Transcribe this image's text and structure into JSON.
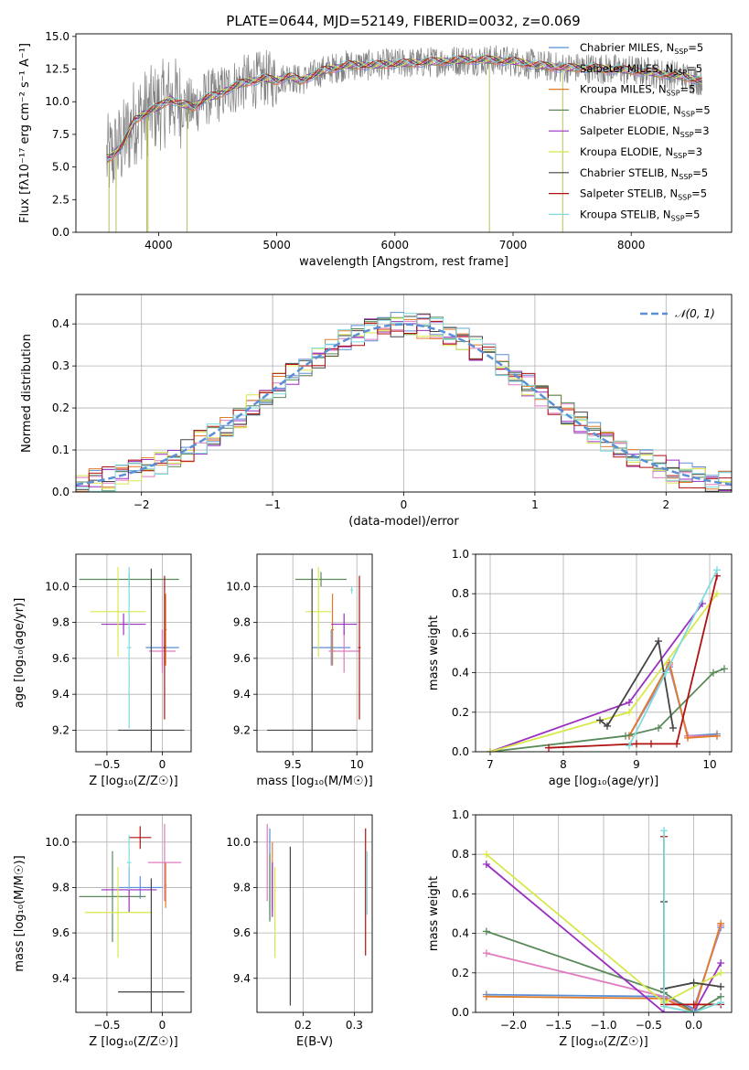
{
  "figure": {
    "title": "PLATE=0644, MJD=52149, FIBERID=0032, z=0.069"
  },
  "colors": {
    "chabrier_miles": "#5b8fd6",
    "salpeter_miles": "#e07bc0",
    "kroupa_miles": "#e07b2a",
    "chabrier_elodie": "#5a8a5a",
    "salpeter_elodie": "#9a2fc0",
    "kroupa_elodie": "#d8e84a",
    "chabrier_stelib": "#444444",
    "salpeter_stelib": "#b01010",
    "kroupa_stelib": "#7fdcdc",
    "data": "#808080",
    "normal": "#5b8fd6"
  },
  "chart_data": [
    {
      "panel": "spectrum",
      "type": "line",
      "title": "PLATE=0644, MJD=52149, FIBERID=0032, z=0.069",
      "xlabel": "wavelength [Angstrom, rest frame]",
      "ylabel": "Flux [fλ10⁻¹⁷ erg cm⁻² s⁻¹ A⁻¹]",
      "xlim": [
        3300,
        8850
      ],
      "ylim": [
        0,
        15.2
      ],
      "xticks": [
        4000,
        5000,
        6000,
        7000,
        8000
      ],
      "yticks": [
        0.0,
        2.5,
        5.0,
        7.5,
        10.0,
        12.5,
        15.0
      ],
      "legend_position": "right",
      "continuum": {
        "x": [
          3560,
          3600,
          3700,
          3800,
          3900,
          4000,
          4100,
          4200,
          4300,
          4400,
          4500,
          4600,
          4700,
          4800,
          4900,
          5000,
          5100,
          5200,
          5300,
          5400,
          5500,
          5600,
          5800,
          6000,
          6200,
          6400,
          6600,
          6800,
          7000,
          7200,
          7400,
          7600,
          7800,
          8000,
          8200,
          8400,
          8600
        ],
        "y": [
          5.6,
          5.8,
          6.8,
          8.6,
          9.2,
          9.6,
          10.2,
          9.8,
          9.6,
          10.3,
          10.5,
          11.0,
          11.4,
          11.6,
          11.8,
          11.6,
          12.0,
          11.6,
          12.0,
          12.4,
          12.6,
          12.8,
          12.8,
          12.9,
          13.0,
          13.1,
          13.2,
          13.2,
          13.1,
          12.8,
          12.6,
          12.6,
          12.5,
          12.4,
          12.2,
          12.0,
          11.6
        ]
      },
      "series": [
        {
          "label": "Chabrier MILES, N<tspan font-size='8' dy='3'>SSP</tspan><tspan dy='-3'>=5</tspan>",
          "color": "#5b8fd6"
        },
        {
          "label": "Salpeter MILES, N<tspan font-size='8' dy='3'>SSP</tspan><tspan dy='-3'>=5</tspan>",
          "color": "#e07bc0"
        },
        {
          "label": "Kroupa MILES, N<tspan font-size='8' dy='3'>SSP</tspan><tspan dy='-3'>=5</tspan>",
          "color": "#e07b2a"
        },
        {
          "label": "Chabrier ELODIE, N<tspan font-size='8' dy='3'>SSP</tspan><tspan dy='-3'>=5</tspan>",
          "color": "#5a8a5a"
        },
        {
          "label": "Salpeter ELODIE, N<tspan font-size='8' dy='3'>SSP</tspan><tspan dy='-3'>=3</tspan>",
          "color": "#9a2fc0"
        },
        {
          "label": "Kroupa ELODIE, N<tspan font-size='8' dy='3'>SSP</tspan><tspan dy='-3'>=3</tspan>",
          "color": "#d8e84a"
        },
        {
          "label": "Chabrier STELIB, N<tspan font-size='8' dy='3'>SSP</tspan><tspan dy='-3'>=5</tspan>",
          "color": "#444444"
        },
        {
          "label": "Salpeter STELIB, N<tspan font-size='8' dy='3'>SSP</tspan><tspan dy='-3'>=5</tspan>",
          "color": "#b01010"
        },
        {
          "label": "Kroupa STELIB, N<tspan font-size='8' dy='3'>SSP</tspan><tspan dy='-3'>=5</tspan>",
          "color": "#7fdcdc"
        }
      ]
    },
    {
      "panel": "residuals",
      "type": "line",
      "xlabel": "(data-model)/error",
      "ylabel": "Normed distribution",
      "xlim": [
        -2.5,
        2.5
      ],
      "ylim": [
        0,
        0.47
      ],
      "xticks": [
        -2,
        -1,
        0,
        1,
        2
      ],
      "yticks": [
        0.0,
        0.1,
        0.2,
        0.3,
        0.4
      ],
      "legend": "𝒩(0, 1)",
      "legend_position": "top-right",
      "bin_width": 0.1
    },
    {
      "panel": "age_vs_Z",
      "type": "scatter",
      "xlabel": "Z [log₁₀(Z/Z☉)]",
      "ylabel": "age  [log₁₀(age/yr)]",
      "xlim": [
        -0.78,
        0.26
      ],
      "ylim": [
        9.08,
        10.18
      ],
      "xticks": [
        -0.5,
        0.0
      ],
      "yticks": [
        9.2,
        9.4,
        9.6,
        9.8,
        10.0
      ],
      "points": [
        {
          "x": 0.0,
          "y": 9.66,
          "xerr": 0.15,
          "yerr": 0.1,
          "color": "#5b8fd6"
        },
        {
          "x": 0.0,
          "y": 9.64,
          "xerr": 0.12,
          "yerr": 0.12,
          "color": "#e07bc0"
        },
        {
          "x": 0.03,
          "y": 9.76,
          "xerr": 0.01,
          "yerr": 0.2,
          "color": "#e07b2a"
        },
        {
          "x": -0.3,
          "y": 10.04,
          "xerr": 0.45,
          "yerr": 0.04,
          "color": "#5a8a5a"
        },
        {
          "x": -0.35,
          "y": 9.79,
          "xerr": 0.2,
          "yerr": 0.06,
          "color": "#9a2fc0"
        },
        {
          "x": -0.4,
          "y": 9.86,
          "xerr": 0.25,
          "yerr": 0.25,
          "color": "#d8e84a"
        },
        {
          "x": -0.1,
          "y": 9.2,
          "xerr": 0.3,
          "yerr": 0.9,
          "color": "#444444"
        },
        {
          "x": 0.02,
          "y": 9.66,
          "xerr": 0.01,
          "yerr": 0.4,
          "color": "#b01010"
        },
        {
          "x": -0.3,
          "y": 9.66,
          "xerr": 0.02,
          "yerr": 0.45,
          "color": "#7fdcdc"
        }
      ]
    },
    {
      "panel": "age_vs_mass",
      "type": "scatter",
      "xlabel": "mass [log₁₀(M/M☉)]",
      "xlim": [
        9.22,
        10.12
      ],
      "ylim": [
        9.08,
        10.18
      ],
      "xticks": [
        9.5,
        10.0
      ],
      "yticks": [
        9.2,
        9.4,
        9.6,
        9.8,
        10.0
      ],
      "points": [
        {
          "x": 9.8,
          "y": 9.66,
          "xerr": 0.15,
          "yerr": 0.1,
          "color": "#5b8fd6"
        },
        {
          "x": 9.9,
          "y": 9.64,
          "xerr": 0.12,
          "yerr": 0.12,
          "color": "#e07bc0"
        },
        {
          "x": 9.81,
          "y": 9.76,
          "xerr": 0.01,
          "yerr": 0.2,
          "color": "#e07b2a"
        },
        {
          "x": 9.72,
          "y": 10.04,
          "xerr": 0.2,
          "yerr": 0.04,
          "color": "#5a8a5a"
        },
        {
          "x": 9.9,
          "y": 9.79,
          "xerr": 0.1,
          "yerr": 0.06,
          "color": "#9a2fc0"
        },
        {
          "x": 9.7,
          "y": 9.86,
          "xerr": 0.1,
          "yerr": 0.25,
          "color": "#d8e84a"
        },
        {
          "x": 9.65,
          "y": 9.2,
          "xerr": 0.35,
          "yerr": 0.9,
          "color": "#444444"
        },
        {
          "x": 10.02,
          "y": 9.66,
          "xerr": 0.01,
          "yerr": 0.4,
          "color": "#b01010"
        },
        {
          "x": 9.96,
          "y": 9.98,
          "xerr": 0.01,
          "yerr": 0.02,
          "color": "#7fdcdc"
        }
      ]
    },
    {
      "panel": "weight_vs_age",
      "type": "line",
      "xlabel": "age  [log₁₀(age/yr)]",
      "ylabel": "mass weight",
      "xlim": [
        6.8,
        10.3
      ],
      "ylim": [
        0,
        1.0
      ],
      "xticks": [
        7,
        8,
        9,
        10
      ],
      "yticks": [
        0.0,
        0.2,
        0.4,
        0.6,
        0.8,
        1.0
      ],
      "series": [
        {
          "color": "#5b8fd6",
          "x": [
            8.9,
            9.45,
            9.7,
            10.1
          ],
          "y": [
            0.08,
            0.43,
            0.08,
            0.09
          ]
        },
        {
          "color": "#e07bc0",
          "x": [
            8.9,
            9.45,
            9.7,
            10.1
          ],
          "y": [
            0.08,
            0.44,
            0.08,
            0.08
          ]
        },
        {
          "color": "#e07b2a",
          "x": [
            8.9,
            9.45,
            9.7,
            10.1
          ],
          "y": [
            0.08,
            0.45,
            0.07,
            0.08
          ]
        },
        {
          "color": "#5a8a5a",
          "x": [
            7.0,
            8.85,
            9.3,
            10.05,
            10.2
          ],
          "y": [
            0.0,
            0.08,
            0.12,
            0.4,
            0.42
          ]
        },
        {
          "color": "#9a2fc0",
          "x": [
            7.0,
            8.9,
            9.9
          ],
          "y": [
            0.0,
            0.25,
            0.75
          ]
        },
        {
          "color": "#d8e84a",
          "x": [
            7.0,
            8.9,
            10.1
          ],
          "y": [
            0.0,
            0.2,
            0.8
          ]
        },
        {
          "color": "#444444",
          "x": [
            8.5,
            8.6,
            9.3,
            9.5
          ],
          "y": [
            0.16,
            0.13,
            0.56,
            0.12
          ]
        },
        {
          "color": "#b01010",
          "x": [
            7.8,
            9.0,
            9.2,
            9.55,
            10.1
          ],
          "y": [
            0.02,
            0.04,
            0.04,
            0.04,
            0.89
          ]
        },
        {
          "color": "#7fdcdc",
          "x": [
            8.9,
            9.4,
            10.1
          ],
          "y": [
            0.03,
            0.4,
            0.92
          ]
        }
      ]
    },
    {
      "panel": "mass_vs_Z",
      "type": "scatter",
      "xlabel": "Z [log₁₀(Z/Z☉)]",
      "ylabel": "mass [log₁₀(M/M☉)]",
      "xlim": [
        -0.78,
        0.26
      ],
      "ylim": [
        9.25,
        10.12
      ],
      "xticks": [
        -0.5,
        0.0
      ],
      "yticks": [
        9.4,
        9.6,
        9.8,
        10.0
      ],
      "points": [
        {
          "x": -0.2,
          "y": 9.8,
          "xerr": 0.2,
          "yerr": 0.05,
          "color": "#5b8fd6"
        },
        {
          "x": 0.02,
          "y": 9.91,
          "xerr": 0.15,
          "yerr": 0.17,
          "color": "#e07bc0"
        },
        {
          "x": 0.03,
          "y": 9.81,
          "xerr": 0.01,
          "yerr": 0.1,
          "color": "#e07b2a"
        },
        {
          "x": -0.45,
          "y": 9.76,
          "xerr": 0.3,
          "yerr": 0.2,
          "color": "#5a8a5a"
        },
        {
          "x": -0.3,
          "y": 9.79,
          "xerr": 0.25,
          "yerr": 0.1,
          "color": "#9a2fc0"
        },
        {
          "x": -0.4,
          "y": 9.69,
          "xerr": 0.3,
          "yerr": 0.2,
          "color": "#d8e84a"
        },
        {
          "x": -0.1,
          "y": 9.34,
          "xerr": 0.3,
          "yerr": 0.5,
          "color": "#444444"
        },
        {
          "x": -0.2,
          "y": 10.02,
          "xerr": 0.1,
          "yerr": 0.05,
          "color": "#b01010"
        },
        {
          "x": -0.3,
          "y": 9.91,
          "xerr": 0.02,
          "yerr": 0.12,
          "color": "#7fdcdc"
        }
      ]
    },
    {
      "panel": "mass_vs_EBV",
      "type": "scatter",
      "xlabel": "E(B-V)",
      "xlim": [
        0.11,
        0.335
      ],
      "ylim": [
        9.25,
        10.12
      ],
      "xticks": [
        0.2,
        0.3
      ],
      "yticks": [
        9.4,
        9.6,
        9.8,
        10.0
      ],
      "points": [
        {
          "x": 0.135,
          "y": 9.86,
          "xerr": 0.0,
          "yerr": 0.2,
          "color": "#5b8fd6"
        },
        {
          "x": 0.13,
          "y": 9.91,
          "xerr": 0.0,
          "yerr": 0.17,
          "color": "#e07bc0"
        },
        {
          "x": 0.14,
          "y": 9.85,
          "xerr": 0.0,
          "yerr": 0.15,
          "color": "#e07b2a"
        },
        {
          "x": 0.135,
          "y": 9.8,
          "xerr": 0.0,
          "yerr": 0.15,
          "color": "#5a8a5a"
        },
        {
          "x": 0.14,
          "y": 9.79,
          "xerr": 0.0,
          "yerr": 0.12,
          "color": "#9a2fc0"
        },
        {
          "x": 0.145,
          "y": 9.69,
          "xerr": 0.0,
          "yerr": 0.2,
          "color": "#d8e84a"
        },
        {
          "x": 0.175,
          "y": 9.63,
          "xerr": 0.0,
          "yerr": 0.35,
          "color": "#444444"
        },
        {
          "x": 0.322,
          "y": 9.78,
          "xerr": 0.0,
          "yerr": 0.28,
          "color": "#b01010"
        },
        {
          "x": 0.325,
          "y": 9.82,
          "xerr": 0.0,
          "yerr": 0.14,
          "color": "#7fdcdc"
        }
      ]
    },
    {
      "panel": "weight_vs_Z",
      "type": "line",
      "xlabel": "Z [log₁₀(Z/Z☉)]",
      "ylabel": "mass weight",
      "xlim": [
        -2.42,
        0.42
      ],
      "ylim": [
        0,
        1.0
      ],
      "xticks": [
        -2.0,
        -1.5,
        -1.0,
        -0.5,
        0.0
      ],
      "yticks": [
        0.0,
        0.2,
        0.4,
        0.6,
        0.8,
        1.0
      ],
      "series": [
        {
          "color": "#5b8fd6",
          "x": [
            -2.3,
            -0.33,
            0.0,
            0.3
          ],
          "y": [
            0.09,
            0.08,
            0.02,
            0.43
          ]
        },
        {
          "color": "#e07bc0",
          "x": [
            -2.3,
            -0.33,
            0.0,
            0.3
          ],
          "y": [
            0.3,
            0.08,
            0.01,
            0.44
          ]
        },
        {
          "color": "#e07b2a",
          "x": [
            -2.3,
            -0.33,
            0.0,
            0.3
          ],
          "y": [
            0.08,
            0.07,
            0.0,
            0.45
          ]
        },
        {
          "color": "#5a8a5a",
          "x": [
            -2.3,
            -0.33,
            0.0,
            0.3
          ],
          "y": [
            0.41,
            0.1,
            0.0,
            0.08
          ]
        },
        {
          "color": "#9a2fc0",
          "x": [
            -2.3,
            -0.33,
            0.0,
            0.3
          ],
          "y": [
            0.75,
            0.0,
            0.0,
            0.25
          ]
        },
        {
          "color": "#d8e84a",
          "x": [
            -2.3,
            -0.33,
            0.3
          ],
          "y": [
            0.8,
            0.05,
            0.2
          ]
        },
        {
          "color": "#444444",
          "x": [
            -0.33,
            -0.33,
            0.0,
            0.3
          ],
          "y": [
            0.56,
            0.12,
            0.15,
            0.13
          ]
        },
        {
          "color": "#b01010",
          "x": [
            -0.33,
            -0.33,
            0.0,
            0.3
          ],
          "y": [
            0.89,
            0.04,
            0.04,
            0.04
          ]
        },
        {
          "color": "#7fdcdc",
          "x": [
            -0.33,
            -0.33,
            0.0,
            0.3
          ],
          "y": [
            0.92,
            0.03,
            0.0,
            0.05
          ]
        }
      ]
    }
  ]
}
